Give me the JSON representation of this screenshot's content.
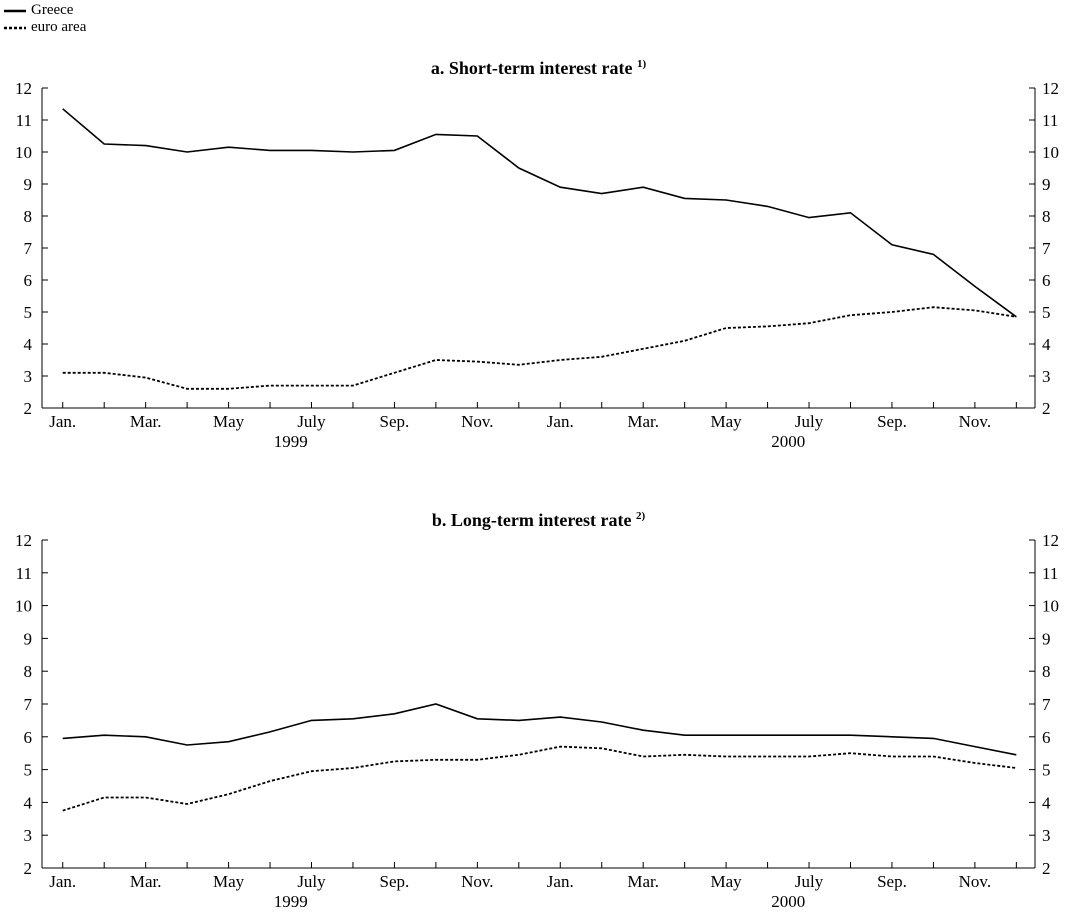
{
  "legend": [
    {
      "name": "Greece",
      "dash": "solid"
    },
    {
      "name": "euro area",
      "dash": "dotted"
    }
  ],
  "chart_data": [
    {
      "type": "line",
      "title": "a. Short-term interest rate",
      "footnote": "1)",
      "x": [
        "1999-01",
        "1999-02",
        "1999-03",
        "1999-04",
        "1999-05",
        "1999-06",
        "1999-07",
        "1999-08",
        "1999-09",
        "1999-10",
        "1999-11",
        "1999-12",
        "2000-01",
        "2000-02",
        "2000-03",
        "2000-04",
        "2000-05",
        "2000-06",
        "2000-07",
        "2000-08",
        "2000-09",
        "2000-10",
        "2000-11",
        "2000-12"
      ],
      "x_tick_labels": [
        "Jan.",
        "Mar.",
        "May",
        "July",
        "Sep.",
        "Nov.",
        "Jan.",
        "Mar.",
        "May",
        "July",
        "Sep.",
        "Nov."
      ],
      "year_labels": [
        "1999",
        "2000"
      ],
      "ylim": [
        2,
        12
      ],
      "yticks": [
        2,
        3,
        4,
        5,
        6,
        7,
        8,
        9,
        10,
        11,
        12
      ],
      "series": [
        {
          "name": "Greece",
          "values": [
            11.35,
            10.25,
            10.2,
            10.0,
            10.15,
            10.05,
            10.05,
            10.0,
            10.05,
            10.55,
            10.5,
            9.5,
            8.9,
            8.7,
            8.9,
            8.55,
            8.5,
            8.3,
            7.95,
            8.1,
            7.1,
            6.8,
            5.8,
            4.85
          ]
        },
        {
          "name": "euro area",
          "values": [
            3.1,
            3.1,
            2.95,
            2.6,
            2.6,
            2.7,
            2.7,
            2.7,
            3.1,
            3.5,
            3.45,
            3.35,
            3.5,
            3.6,
            3.85,
            4.1,
            4.5,
            4.55,
            4.65,
            4.9,
            5.0,
            5.15,
            5.05,
            4.85
          ]
        }
      ]
    },
    {
      "type": "line",
      "title": "b. Long-term interest rate",
      "footnote": "2)",
      "x": [
        "1999-01",
        "1999-02",
        "1999-03",
        "1999-04",
        "1999-05",
        "1999-06",
        "1999-07",
        "1999-08",
        "1999-09",
        "1999-10",
        "1999-11",
        "1999-12",
        "2000-01",
        "2000-02",
        "2000-03",
        "2000-04",
        "2000-05",
        "2000-06",
        "2000-07",
        "2000-08",
        "2000-09",
        "2000-10",
        "2000-11",
        "2000-12"
      ],
      "x_tick_labels": [
        "Jan.",
        "Mar.",
        "May",
        "July",
        "Sep.",
        "Nov.",
        "Jan.",
        "Mar.",
        "May",
        "July",
        "Sep.",
        "Nov."
      ],
      "year_labels": [
        "1999",
        "2000"
      ],
      "ylim": [
        2,
        12
      ],
      "yticks": [
        2,
        3,
        4,
        5,
        6,
        7,
        8,
        9,
        10,
        11,
        12
      ],
      "series": [
        {
          "name": "Greece",
          "values": [
            5.95,
            6.05,
            6.0,
            5.75,
            5.85,
            6.15,
            6.5,
            6.55,
            6.7,
            7.0,
            6.55,
            6.5,
            6.6,
            6.45,
            6.2,
            6.05,
            6.05,
            6.05,
            6.05,
            6.05,
            6.0,
            5.95,
            5.7,
            5.45
          ]
        },
        {
          "name": "euro area",
          "values": [
            3.75,
            4.15,
            4.15,
            3.95,
            4.25,
            4.65,
            4.95,
            5.05,
            5.25,
            5.3,
            5.3,
            5.45,
            5.7,
            5.65,
            5.4,
            5.45,
            5.4,
            5.4,
            5.4,
            5.5,
            5.4,
            5.4,
            5.2,
            5.05
          ]
        }
      ]
    }
  ]
}
